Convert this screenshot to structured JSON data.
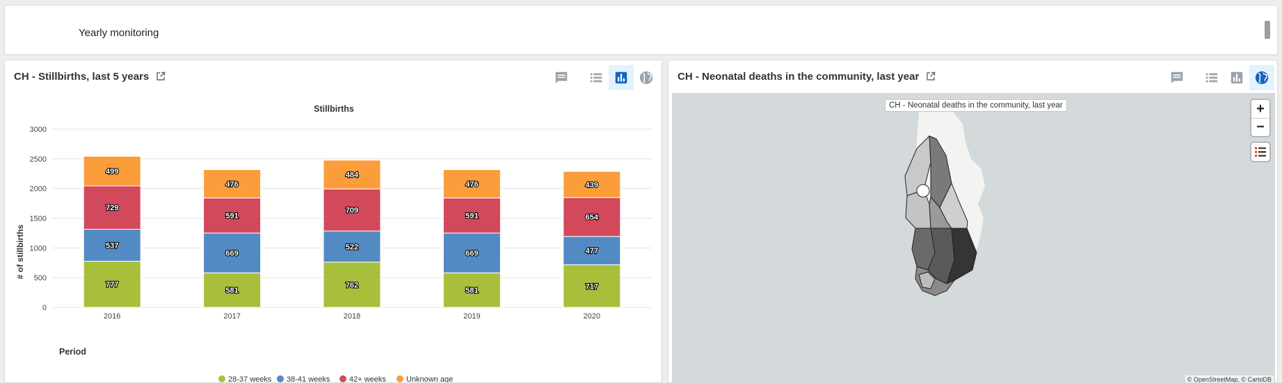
{
  "top": {
    "title": "Yearly monitoring"
  },
  "left_panel": {
    "title": "CH - Stillbirths, last 5 years",
    "tools": [
      "comment-icon",
      "table-icon",
      "chart-icon",
      "globe-icon"
    ],
    "active_tool": "chart-icon"
  },
  "right_panel": {
    "title": "CH - Neonatal deaths in the community, last year",
    "tools": [
      "comment-icon",
      "table-icon",
      "chart-icon",
      "globe-icon"
    ],
    "active_tool": "globe-icon",
    "map": {
      "tooltip": "CH - Neonatal deaths in the community, last year",
      "zoom_in": "+",
      "zoom_out": "−",
      "attribution": "© OpenStreetMap, © CartoDB"
    }
  },
  "colors": {
    "accent": "#1565c0",
    "active_tool_bg": "#e3f2fd",
    "map_bg": "#d4d9dc"
  },
  "chart_data": {
    "type": "bar",
    "stacked": true,
    "title": "Stillbirths",
    "xlabel": "Period",
    "ylabel": "# of stillbirths",
    "ylim": [
      0,
      3000
    ],
    "yticks": [
      0,
      500,
      1000,
      1500,
      2000,
      2500,
      3000
    ],
    "grid": true,
    "legend_position": "bottom",
    "categories": [
      "2016",
      "2017",
      "2018",
      "2019",
      "2020"
    ],
    "series": [
      {
        "name": "28-37 weeks",
        "color": "#a7bf3b",
        "values": [
          777,
          581,
          762,
          581,
          717
        ]
      },
      {
        "name": "38-41 weeks",
        "color": "#528ac3",
        "values": [
          537,
          669,
          522,
          669,
          477
        ]
      },
      {
        "name": "42+ weeks",
        "color": "#d2495b",
        "values": [
          729,
          591,
          709,
          591,
          654
        ]
      },
      {
        "name": "Unknown age",
        "color": "#fb9d3a",
        "values": [
          499,
          476,
          484,
          476,
          439
        ]
      }
    ]
  }
}
